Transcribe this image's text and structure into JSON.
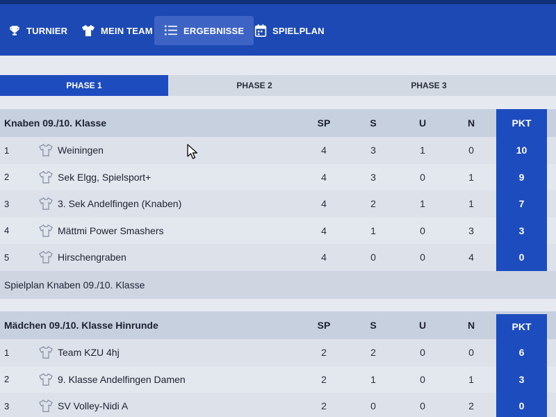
{
  "nav": {
    "items": [
      {
        "label": "TURNIER",
        "icon": "trophy-icon"
      },
      {
        "label": "MEIN TEAM",
        "icon": "shirt-icon"
      },
      {
        "label": "ERGEBNISSE",
        "icon": "list-icon",
        "active": true
      },
      {
        "label": "SPIELPLAN",
        "icon": "calendar-icon"
      }
    ]
  },
  "tabs": [
    {
      "label": "PHASE 1",
      "active": true
    },
    {
      "label": "PHASE 2"
    },
    {
      "label": "PHASE 3"
    }
  ],
  "columns": [
    "SP",
    "S",
    "U",
    "N",
    "PKT"
  ],
  "groups": [
    {
      "title": "Knaben 09./10. Klasse",
      "rows": [
        {
          "rank": "1",
          "team": "Weiningen",
          "sp": "4",
          "s": "3",
          "u": "1",
          "n": "0",
          "pkt": "10"
        },
        {
          "rank": "2",
          "team": "Sek Elgg, Spielsport+",
          "sp": "4",
          "s": "3",
          "u": "0",
          "n": "1",
          "pkt": "9"
        },
        {
          "rank": "3",
          "team": "3. Sek Andelfingen (Knaben)",
          "sp": "4",
          "s": "2",
          "u": "1",
          "n": "1",
          "pkt": "7"
        },
        {
          "rank": "4",
          "team": "Mättmi Power Smashers",
          "sp": "4",
          "s": "1",
          "u": "0",
          "n": "3",
          "pkt": "3"
        },
        {
          "rank": "5",
          "team": "Hirschengraben",
          "sp": "4",
          "s": "0",
          "u": "0",
          "n": "4",
          "pkt": "0"
        }
      ],
      "footer": "Spielplan Knaben 09./10. Klasse"
    },
    {
      "title": "Mädchen 09./10. Klasse Hinrunde",
      "rows": [
        {
          "rank": "1",
          "team": "Team KZU 4hj",
          "sp": "2",
          "s": "2",
          "u": "0",
          "n": "0",
          "pkt": "6"
        },
        {
          "rank": "2",
          "team": "9. Klasse Andelfingen Damen",
          "sp": "2",
          "s": "1",
          "u": "0",
          "n": "1",
          "pkt": "3"
        },
        {
          "rank": "3",
          "team": "SV Volley-Nidi A",
          "sp": "2",
          "s": "0",
          "u": "0",
          "n": "2",
          "pkt": "0"
        }
      ]
    }
  ],
  "colors": {
    "primary": "#1c49b4",
    "header_bg": "#c7d0de",
    "pkt_bg": "#1d4cbf"
  }
}
